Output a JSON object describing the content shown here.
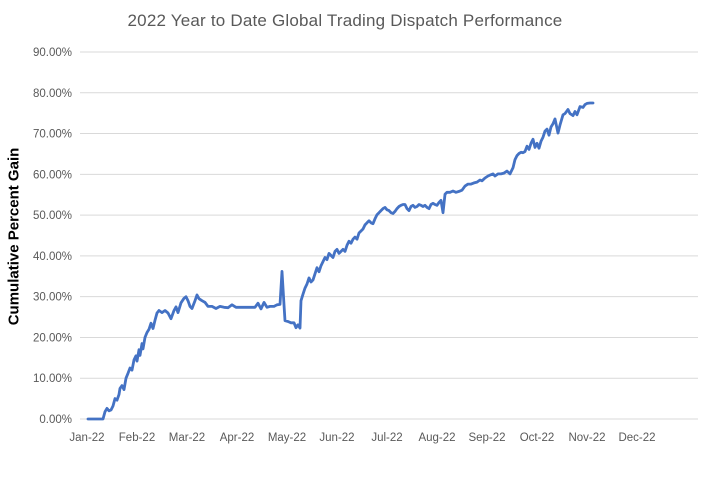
{
  "chart_data": {
    "type": "line",
    "title": "2022 Year to Date Global Trading Dispatch Performance",
    "ylabel": "Cumulative Percent Gain",
    "xlabel": "",
    "x_tick_labels": [
      "Jan-22",
      "Feb-22",
      "Mar-22",
      "Apr-22",
      "May-22",
      "Jun-22",
      "Jul-22",
      "Aug-22",
      "Sep-22",
      "Oct-22",
      "Nov-22",
      "Dec-22"
    ],
    "y_tick_labels": [
      "0.00%",
      "10.00%",
      "20.00%",
      "30.00%",
      "40.00%",
      "50.00%",
      "60.00%",
      "70.00%",
      "80.00%",
      "90.00%"
    ],
    "ylim": [
      0,
      90
    ],
    "y_tick_step": 10,
    "grid": true,
    "legend": "none",
    "series": [
      {
        "name": "Cumulative Percent Gain",
        "color": "#4472C4",
        "x_unit": "months since Jan-22 tick (0 = Jan-22, 1 = Feb-22, ...); values are cumulative percent gain",
        "points": [
          [
            0.02,
            0
          ],
          [
            0.1,
            0
          ],
          [
            0.2,
            0
          ],
          [
            0.32,
            0
          ],
          [
            0.36,
            1.8
          ],
          [
            0.4,
            2.6
          ],
          [
            0.44,
            2.0
          ],
          [
            0.48,
            2.2
          ],
          [
            0.52,
            3.2
          ],
          [
            0.56,
            5.0
          ],
          [
            0.6,
            4.6
          ],
          [
            0.64,
            6.0
          ],
          [
            0.66,
            7.5
          ],
          [
            0.7,
            8.2
          ],
          [
            0.74,
            7.2
          ],
          [
            0.78,
            10.0
          ],
          [
            0.82,
            11.2
          ],
          [
            0.86,
            12.5
          ],
          [
            0.9,
            12.0
          ],
          [
            0.94,
            14.5
          ],
          [
            0.98,
            15.5
          ],
          [
            1.0,
            14.2
          ],
          [
            1.04,
            17.0
          ],
          [
            1.06,
            15.6
          ],
          [
            1.1,
            18.5
          ],
          [
            1.12,
            17.2
          ],
          [
            1.16,
            20.0
          ],
          [
            1.2,
            21.2
          ],
          [
            1.24,
            22.0
          ],
          [
            1.28,
            23.5
          ],
          [
            1.32,
            22.2
          ],
          [
            1.36,
            24.2
          ],
          [
            1.4,
            26.0
          ],
          [
            1.44,
            26.6
          ],
          [
            1.5,
            26.1
          ],
          [
            1.56,
            26.6
          ],
          [
            1.62,
            26.0
          ],
          [
            1.68,
            24.6
          ],
          [
            1.74,
            26.6
          ],
          [
            1.78,
            27.5
          ],
          [
            1.82,
            26.1
          ],
          [
            1.88,
            28.5
          ],
          [
            1.94,
            29.6
          ],
          [
            1.98,
            30.0
          ],
          [
            2.02,
            29.0
          ],
          [
            2.06,
            27.6
          ],
          [
            2.1,
            27.1
          ],
          [
            2.16,
            29.0
          ],
          [
            2.2,
            30.4
          ],
          [
            2.24,
            29.5
          ],
          [
            2.3,
            29.0
          ],
          [
            2.36,
            28.6
          ],
          [
            2.42,
            27.6
          ],
          [
            2.5,
            27.6
          ],
          [
            2.58,
            27.1
          ],
          [
            2.66,
            27.6
          ],
          [
            2.74,
            27.4
          ],
          [
            2.82,
            27.3
          ],
          [
            2.9,
            28.0
          ],
          [
            2.98,
            27.4
          ],
          [
            3.06,
            27.4
          ],
          [
            3.16,
            27.4
          ],
          [
            3.26,
            27.4
          ],
          [
            3.36,
            27.4
          ],
          [
            3.42,
            28.4
          ],
          [
            3.48,
            27.0
          ],
          [
            3.54,
            28.6
          ],
          [
            3.6,
            27.4
          ],
          [
            3.66,
            27.6
          ],
          [
            3.74,
            27.6
          ],
          [
            3.8,
            28.0
          ],
          [
            3.86,
            28.1
          ],
          [
            3.9,
            36.2
          ],
          [
            3.94,
            28.0
          ],
          [
            3.96,
            24.1
          ],
          [
            4.02,
            23.9
          ],
          [
            4.08,
            23.6
          ],
          [
            4.14,
            23.6
          ],
          [
            4.18,
            22.4
          ],
          [
            4.22,
            23.1
          ],
          [
            4.26,
            22.3
          ],
          [
            4.28,
            29.0
          ],
          [
            4.32,
            30.6
          ],
          [
            4.36,
            32.1
          ],
          [
            4.4,
            33.1
          ],
          [
            4.44,
            34.6
          ],
          [
            4.48,
            33.6
          ],
          [
            4.52,
            34.1
          ],
          [
            4.56,
            35.6
          ],
          [
            4.6,
            37.1
          ],
          [
            4.64,
            36.1
          ],
          [
            4.68,
            37.6
          ],
          [
            4.72,
            38.6
          ],
          [
            4.76,
            39.6
          ],
          [
            4.8,
            39.1
          ],
          [
            4.84,
            40.6
          ],
          [
            4.88,
            40.1
          ],
          [
            4.92,
            39.6
          ],
          [
            4.96,
            41.1
          ],
          [
            5.0,
            41.6
          ],
          [
            5.04,
            40.6
          ],
          [
            5.08,
            41.1
          ],
          [
            5.12,
            41.6
          ],
          [
            5.16,
            41.1
          ],
          [
            5.2,
            42.6
          ],
          [
            5.24,
            43.6
          ],
          [
            5.28,
            43.1
          ],
          [
            5.32,
            44.1
          ],
          [
            5.36,
            44.6
          ],
          [
            5.4,
            44.1
          ],
          [
            5.44,
            45.6
          ],
          [
            5.48,
            46.1
          ],
          [
            5.52,
            46.6
          ],
          [
            5.56,
            47.6
          ],
          [
            5.6,
            48.1
          ],
          [
            5.64,
            48.6
          ],
          [
            5.68,
            48.1
          ],
          [
            5.72,
            47.9
          ],
          [
            5.76,
            49.1
          ],
          [
            5.8,
            50.1
          ],
          [
            5.84,
            50.6
          ],
          [
            5.88,
            51.1
          ],
          [
            5.92,
            51.6
          ],
          [
            5.96,
            51.9
          ],
          [
            6.0,
            51.3
          ],
          [
            6.04,
            51.1
          ],
          [
            6.08,
            50.6
          ],
          [
            6.12,
            50.4
          ],
          [
            6.16,
            50.9
          ],
          [
            6.2,
            51.6
          ],
          [
            6.24,
            52.1
          ],
          [
            6.28,
            52.4
          ],
          [
            6.32,
            52.6
          ],
          [
            6.36,
            52.6
          ],
          [
            6.4,
            51.6
          ],
          [
            6.44,
            51.1
          ],
          [
            6.48,
            52.1
          ],
          [
            6.52,
            52.4
          ],
          [
            6.56,
            51.9
          ],
          [
            6.6,
            52.1
          ],
          [
            6.64,
            52.6
          ],
          [
            6.68,
            52.4
          ],
          [
            6.72,
            52.1
          ],
          [
            6.76,
            52.4
          ],
          [
            6.8,
            51.9
          ],
          [
            6.84,
            51.6
          ],
          [
            6.88,
            52.6
          ],
          [
            6.92,
            52.9
          ],
          [
            6.96,
            52.6
          ],
          [
            7.0,
            52.4
          ],
          [
            7.04,
            53.1
          ],
          [
            7.08,
            53.6
          ],
          [
            7.12,
            50.6
          ],
          [
            7.16,
            55.1
          ],
          [
            7.2,
            55.6
          ],
          [
            7.26,
            55.6
          ],
          [
            7.32,
            55.9
          ],
          [
            7.38,
            55.6
          ],
          [
            7.44,
            55.8
          ],
          [
            7.5,
            56.1
          ],
          [
            7.56,
            57.1
          ],
          [
            7.62,
            57.6
          ],
          [
            7.68,
            57.6
          ],
          [
            7.74,
            57.9
          ],
          [
            7.8,
            58.1
          ],
          [
            7.86,
            58.6
          ],
          [
            7.9,
            58.4
          ],
          [
            7.96,
            59.1
          ],
          [
            8.02,
            59.6
          ],
          [
            8.06,
            59.8
          ],
          [
            8.12,
            60.1
          ],
          [
            8.16,
            59.6
          ],
          [
            8.22,
            60.1
          ],
          [
            8.28,
            60.1
          ],
          [
            8.34,
            60.3
          ],
          [
            8.4,
            60.8
          ],
          [
            8.46,
            60.1
          ],
          [
            8.52,
            61.6
          ],
          [
            8.56,
            63.6
          ],
          [
            8.6,
            64.6
          ],
          [
            8.64,
            65.1
          ],
          [
            8.68,
            65.4
          ],
          [
            8.72,
            65.3
          ],
          [
            8.76,
            65.6
          ],
          [
            8.8,
            66.9
          ],
          [
            8.84,
            66.1
          ],
          [
            8.88,
            67.6
          ],
          [
            8.92,
            68.6
          ],
          [
            8.96,
            66.6
          ],
          [
            9.0,
            67.6
          ],
          [
            9.04,
            66.4
          ],
          [
            9.08,
            68.1
          ],
          [
            9.12,
            69.1
          ],
          [
            9.16,
            70.6
          ],
          [
            9.2,
            71.1
          ],
          [
            9.24,
            69.6
          ],
          [
            9.28,
            71.6
          ],
          [
            9.32,
            72.4
          ],
          [
            9.36,
            73.6
          ],
          [
            9.42,
            70.1
          ],
          [
            9.46,
            72.1
          ],
          [
            9.52,
            74.6
          ],
          [
            9.56,
            74.9
          ],
          [
            9.62,
            75.9
          ],
          [
            9.66,
            74.9
          ],
          [
            9.72,
            74.4
          ],
          [
            9.76,
            75.4
          ],
          [
            9.8,
            74.6
          ],
          [
            9.86,
            76.6
          ],
          [
            9.92,
            76.4
          ],
          [
            9.96,
            77.1
          ],
          [
            10.0,
            77.4
          ],
          [
            10.06,
            77.5
          ],
          [
            10.12,
            77.5
          ]
        ]
      }
    ]
  },
  "colors": {
    "line": "#4472C4",
    "gridline": "#d9d9d9",
    "tick_text": "#595959",
    "title_text": "#595959",
    "axis_title_text": "#000000"
  }
}
